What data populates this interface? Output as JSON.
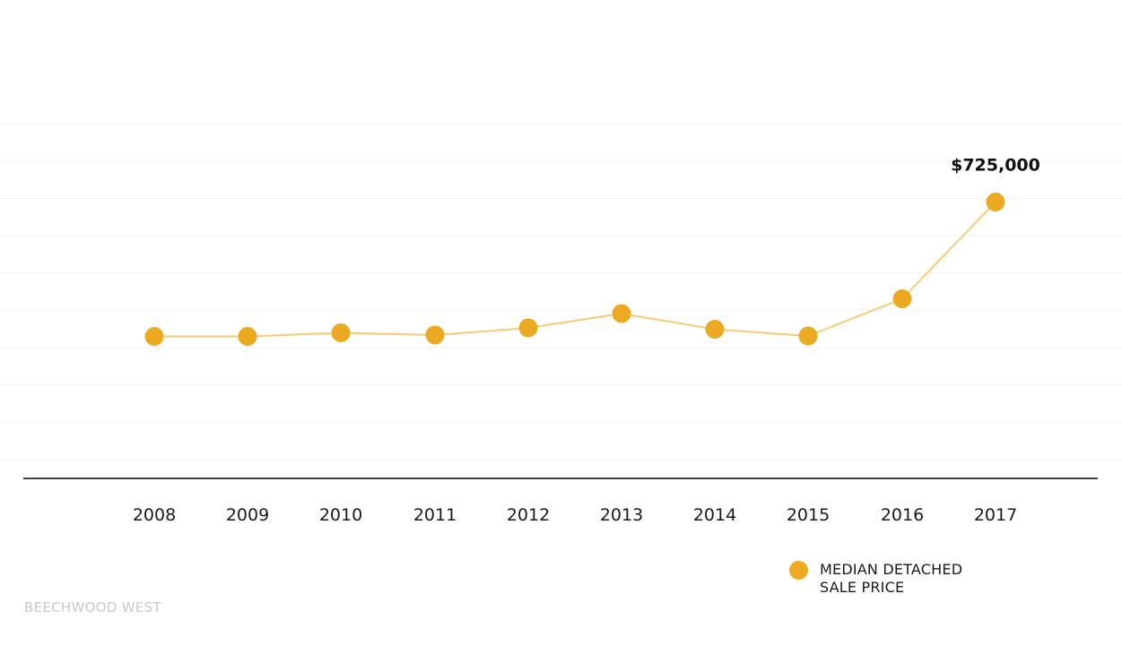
{
  "chart_data": {
    "type": "line",
    "title": "",
    "xlabel": "",
    "ylabel": "",
    "categories": [
      "2008",
      "2009",
      "2010",
      "2011",
      "2012",
      "2013",
      "2014",
      "2015",
      "2016",
      "2017"
    ],
    "series": [
      {
        "name": "MEDIAN DETACHED SALE PRICE",
        "values": [
          425000,
          425000,
          433000,
          428000,
          444000,
          476000,
          441000,
          426000,
          509000,
          725000
        ],
        "color": "#EBAA22",
        "line_color": "#F6CB72"
      }
    ],
    "ylim": [
      150000,
      900000
    ],
    "grid": true,
    "legend": "bottom-right",
    "annotations": [
      {
        "category": "2017",
        "text": "$725,000"
      }
    ]
  },
  "legend": {
    "label": "MEDIAN DETACHED SALE PRICE"
  },
  "watermark": {
    "text": "BEECHWOOD WEST"
  },
  "colors": {
    "point": "#EBAA22",
    "line": "#F6CB72",
    "baseline": "#444444",
    "grid": "#f3f3f3",
    "watermark": "#c9c9c9"
  }
}
